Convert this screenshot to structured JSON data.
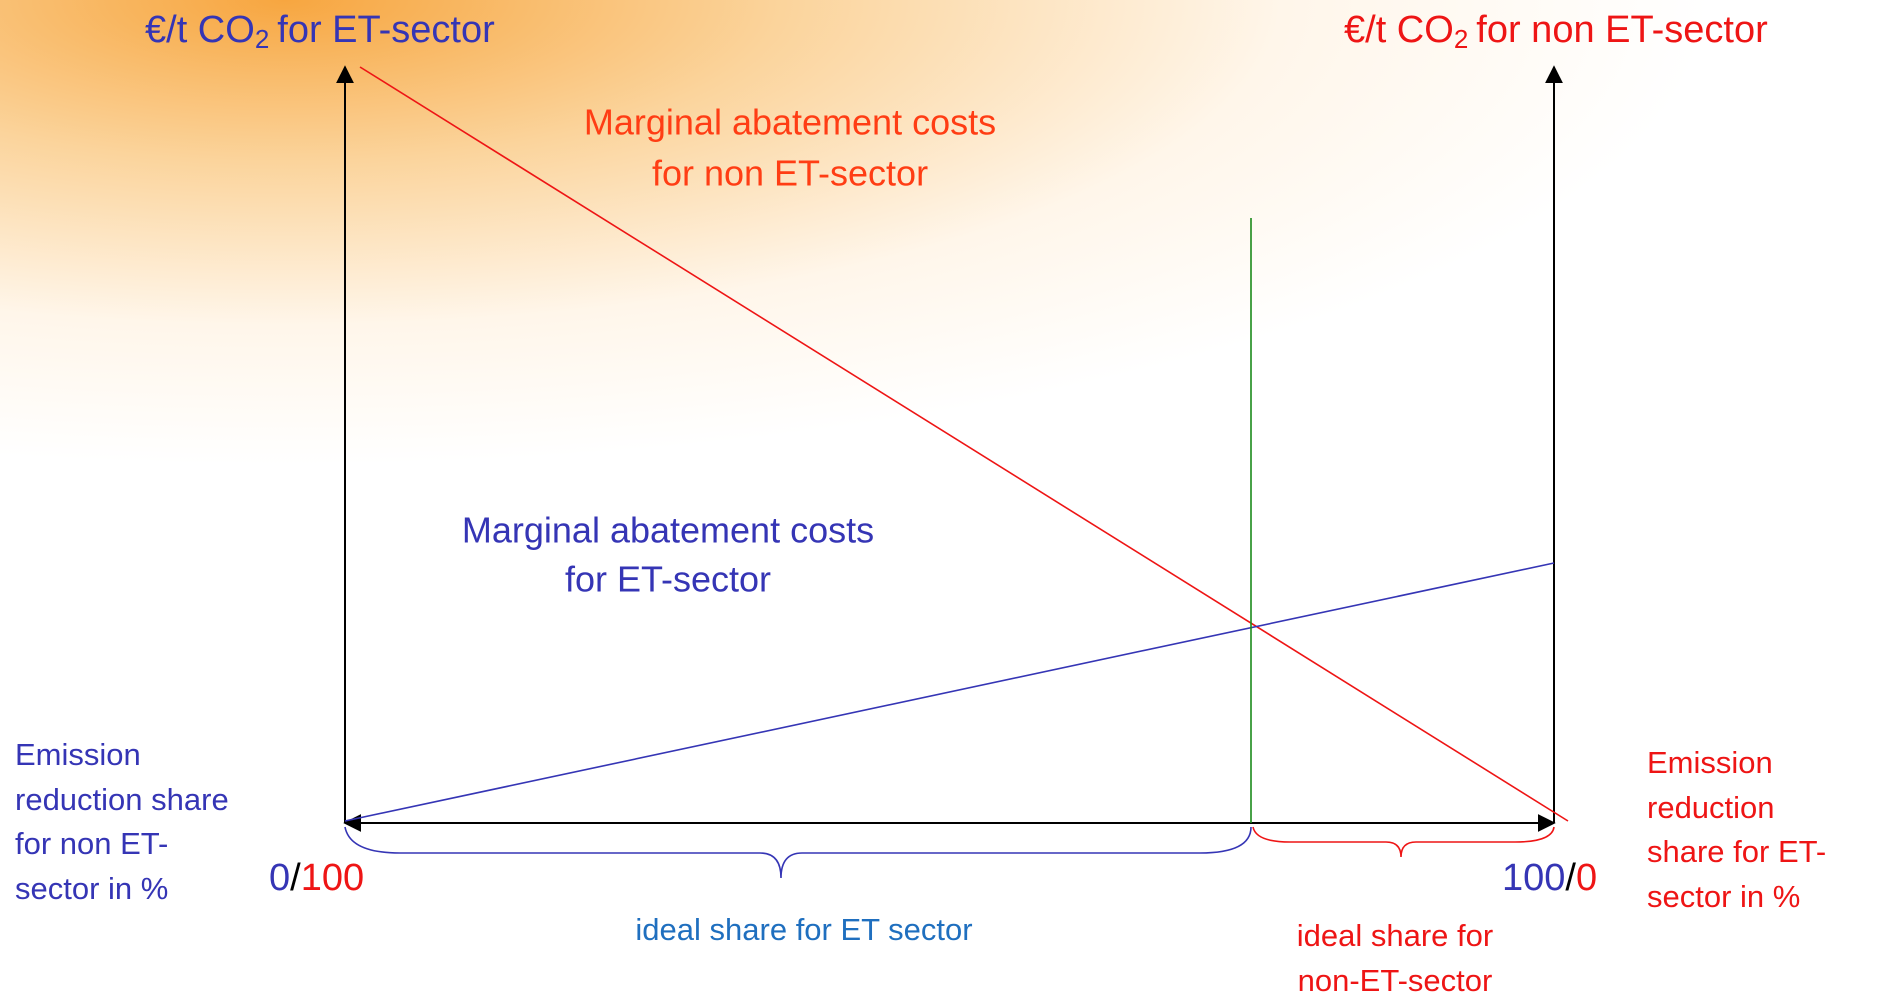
{
  "left_axis": {
    "title": {
      "prefix": "€/t CO",
      "sub": "2",
      "suffix": "for ET-sector"
    },
    "end_label": {
      "blue": "0",
      "slash": "/",
      "red": "100"
    }
  },
  "right_axis": {
    "title": {
      "prefix": "€/t CO",
      "sub": "2",
      "suffix": "for non ET-sector"
    },
    "end_label": {
      "blue": "100",
      "slash": "/",
      "red": "0"
    }
  },
  "curves": {
    "non_et": {
      "lines": [
        "Marginal abatement costs",
        "for non ET-sector"
      ]
    },
    "et": {
      "lines": [
        "Marginal abatement costs",
        "for ET-sector"
      ]
    }
  },
  "left_note": {
    "lines": [
      "Emission",
      "reduction share",
      "for non ET-",
      "sector in %"
    ]
  },
  "right_note": {
    "lines": [
      "Emission",
      "reduction",
      "share for ET-",
      "sector in %"
    ]
  },
  "braces": {
    "et": {
      "lines": [
        "ideal share for ET sector"
      ]
    },
    "non_et": {
      "lines": [
        "ideal share for",
        "non-ET-sector"
      ]
    }
  }
}
